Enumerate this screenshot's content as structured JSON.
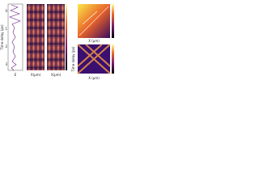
{
  "panels": [
    {
      "ylabel": "Time delay (ps)",
      "yticks": [
        "0",
        "1",
        "2",
        "3"
      ],
      "xlabel": "E"
    },
    {
      "xlabel": "X(μm)"
    },
    {
      "xlabel": "X(μm)"
    },
    {
      "xlabel": "X (μm)"
    },
    {
      "ylabel": "Time delay (ps)",
      "xlabel": "X (μm)"
    }
  ]
}
